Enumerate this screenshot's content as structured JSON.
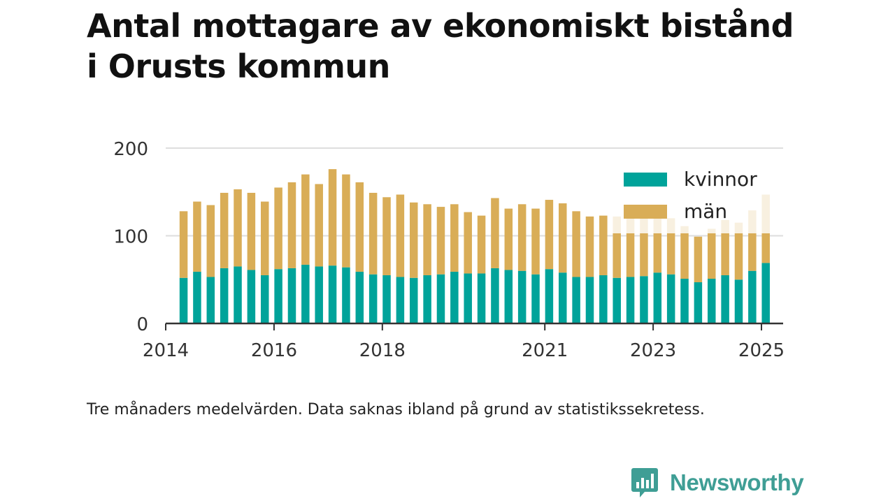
{
  "title_lines": [
    "Antal mottagare av ekonomiskt bistånd",
    "i Orusts kommun"
  ],
  "footnote": "Tre månaders medelvärden. Data saknas ibland på grund av statistikssekretess.",
  "brand": {
    "name": "Newsworthy",
    "icon": "newsworthy-logo-icon",
    "color": "#3f9e95"
  },
  "colors": {
    "kvinnor": "#00a39a",
    "man": "#d9ad57",
    "grid": "#dedede",
    "axis": "#333333",
    "text": "#333333"
  },
  "chart_data": {
    "type": "bar",
    "stacked": true,
    "ylim": [
      0,
      200
    ],
    "yticks": [
      0,
      100,
      200
    ],
    "xlim": [
      2014.0,
      2025.4
    ],
    "xticks": [
      2014,
      2016,
      2018,
      2021,
      2023,
      2025
    ],
    "grid": true,
    "legend_position": "top-right",
    "x": [
      2014.33,
      2014.58,
      2014.83,
      2015.08,
      2015.33,
      2015.58,
      2015.83,
      2016.08,
      2016.33,
      2016.58,
      2016.83,
      2017.08,
      2017.33,
      2017.58,
      2017.83,
      2018.08,
      2018.33,
      2018.58,
      2018.83,
      2019.08,
      2019.33,
      2019.58,
      2019.83,
      2020.08,
      2020.33,
      2020.58,
      2020.83,
      2021.08,
      2021.33,
      2021.58,
      2021.83,
      2022.08,
      2022.33,
      2022.58,
      2022.83,
      2023.08,
      2023.33,
      2023.58,
      2023.83,
      2024.08,
      2024.33,
      2024.58,
      2024.83,
      2025.08
    ],
    "series": [
      {
        "name": "kvinnor",
        "color": "#00a39a",
        "values": [
          52,
          59,
          53,
          63,
          65,
          61,
          55,
          62,
          63,
          67,
          65,
          66,
          64,
          59,
          56,
          55,
          53,
          52,
          55,
          56,
          59,
          57,
          57,
          63,
          61,
          60,
          56,
          62,
          58,
          53,
          53,
          55,
          52,
          53,
          54,
          58,
          56,
          51,
          47,
          51,
          55,
          50,
          60,
          69
        ]
      },
      {
        "name": "män",
        "color": "#d9ad57",
        "values": [
          76,
          80,
          82,
          86,
          88,
          88,
          84,
          93,
          98,
          103,
          94,
          110,
          106,
          102,
          93,
          89,
          94,
          86,
          81,
          77,
          77,
          70,
          66,
          80,
          70,
          76,
          75,
          79,
          79,
          75,
          69,
          68,
          70,
          71,
          74,
          71,
          64,
          60,
          52,
          57,
          63,
          65,
          69,
          78
        ]
      }
    ]
  }
}
